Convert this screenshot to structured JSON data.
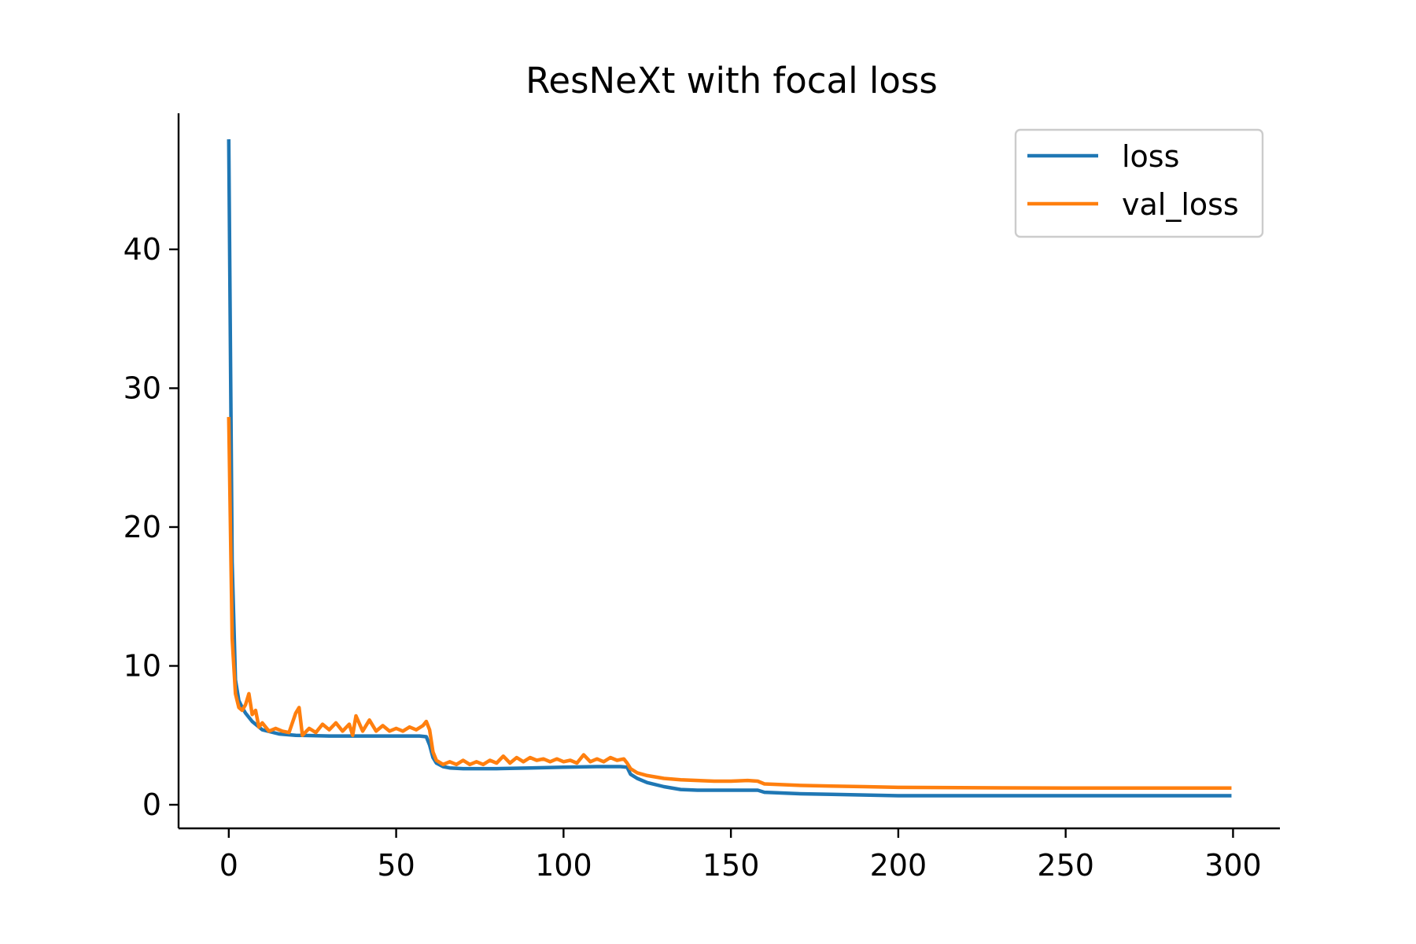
{
  "chart_data": {
    "type": "line",
    "title": "ResNeXt with focal loss",
    "xlabel": "",
    "ylabel": "",
    "xlim": [
      -15,
      314
    ],
    "ylim": [
      -1.7,
      49.8
    ],
    "xticks": [
      0,
      50,
      100,
      150,
      200,
      250,
      300
    ],
    "yticks": [
      0,
      10,
      20,
      30,
      40
    ],
    "grid": false,
    "legend_position": "upper right",
    "series": [
      {
        "name": "loss",
        "color": "#1f77b4",
        "x": [
          0,
          1,
          2,
          3,
          4,
          5,
          7,
          10,
          15,
          20,
          30,
          40,
          50,
          57,
          59,
          60,
          61,
          62,
          64,
          66,
          70,
          80,
          90,
          100,
          110,
          117,
          119,
          120,
          122,
          125,
          130,
          135,
          140,
          145,
          150,
          155,
          158,
          160,
          165,
          170,
          180,
          190,
          200,
          220,
          250,
          280,
          299
        ],
        "y": [
          47.8,
          17.5,
          9.0,
          7.5,
          7.0,
          6.6,
          6.0,
          5.4,
          5.1,
          5.0,
          4.95,
          4.95,
          4.95,
          4.95,
          4.9,
          4.3,
          3.4,
          3.0,
          2.75,
          2.65,
          2.6,
          2.6,
          2.65,
          2.7,
          2.75,
          2.75,
          2.7,
          2.2,
          1.9,
          1.6,
          1.3,
          1.1,
          1.05,
          1.05,
          1.05,
          1.05,
          1.05,
          0.9,
          0.85,
          0.8,
          0.75,
          0.7,
          0.65,
          0.65,
          0.65,
          0.65,
          0.65
        ]
      },
      {
        "name": "val_loss",
        "color": "#ff7f0e",
        "x": [
          0,
          1,
          2,
          3,
          4,
          5,
          6,
          7,
          8,
          9,
          10,
          12,
          14,
          16,
          18,
          20,
          21,
          22,
          24,
          26,
          28,
          30,
          32,
          34,
          36,
          37,
          38,
          40,
          42,
          44,
          46,
          48,
          50,
          52,
          54,
          56,
          58,
          59,
          60,
          61,
          62,
          64,
          66,
          68,
          70,
          72,
          74,
          76,
          78,
          80,
          82,
          84,
          86,
          88,
          90,
          92,
          94,
          96,
          98,
          100,
          102,
          104,
          106,
          108,
          110,
          112,
          114,
          116,
          118,
          119,
          120,
          122,
          125,
          130,
          135,
          140,
          145,
          150,
          155,
          158,
          160,
          165,
          170,
          180,
          190,
          200,
          250,
          299
        ],
        "y": [
          27.8,
          12.0,
          8.0,
          7.0,
          6.8,
          7.2,
          8.0,
          6.5,
          6.8,
          5.6,
          5.9,
          5.3,
          5.5,
          5.3,
          5.2,
          6.6,
          7.0,
          5.0,
          5.5,
          5.2,
          5.8,
          5.4,
          5.9,
          5.3,
          5.8,
          5.0,
          6.4,
          5.3,
          6.1,
          5.3,
          5.7,
          5.3,
          5.5,
          5.3,
          5.6,
          5.4,
          5.7,
          6.0,
          5.4,
          3.8,
          3.2,
          2.9,
          3.1,
          2.9,
          3.2,
          2.9,
          3.1,
          2.9,
          3.2,
          3.0,
          3.5,
          3.0,
          3.4,
          3.1,
          3.4,
          3.2,
          3.3,
          3.1,
          3.3,
          3.1,
          3.2,
          3.0,
          3.6,
          3.1,
          3.3,
          3.1,
          3.4,
          3.2,
          3.3,
          3.0,
          2.6,
          2.3,
          2.1,
          1.9,
          1.8,
          1.75,
          1.7,
          1.7,
          1.75,
          1.7,
          1.5,
          1.45,
          1.4,
          1.35,
          1.3,
          1.25,
          1.2,
          1.2
        ]
      }
    ]
  }
}
